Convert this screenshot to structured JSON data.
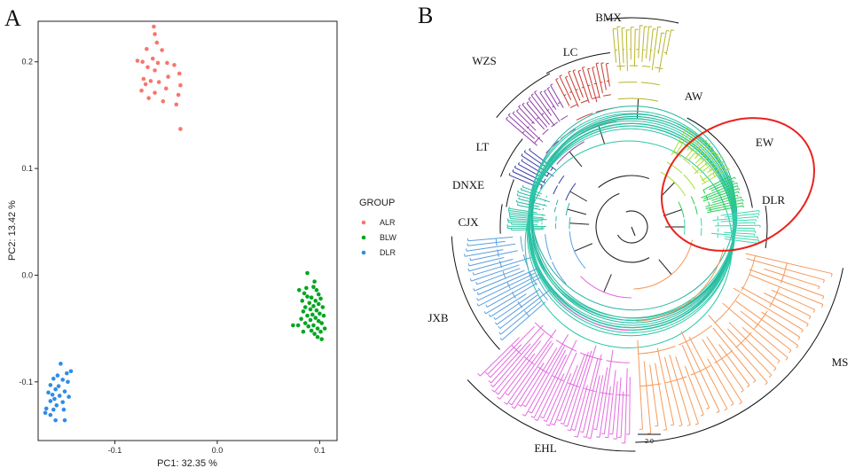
{
  "panels": {
    "a": "A",
    "b": "B"
  },
  "chart_data": [
    {
      "type": "scatter",
      "title": "",
      "xlabel": "PC1: 32.35 %",
      "ylabel": "PC2: 13.42 %",
      "xlim": [
        -0.175,
        0.117
      ],
      "ylim": [
        -0.155,
        0.238
      ],
      "xticks": [
        -0.1,
        0.0,
        0.1
      ],
      "yticks": [
        -0.1,
        0.0,
        0.1,
        0.2
      ],
      "xtick_labels": [
        "-0.1",
        "0.0",
        "0.1"
      ],
      "ytick_labels": [
        "-0.1",
        "0.0",
        "0.1",
        "0.2"
      ],
      "grid": false,
      "legend": {
        "title": "GROUP",
        "placement": "right"
      },
      "series": [
        {
          "name": "ALR",
          "color": "#F8766D",
          "points": [
            [
              -0.062,
              0.233
            ],
            [
              -0.061,
              0.226
            ],
            [
              -0.059,
              0.218
            ],
            [
              -0.069,
              0.212
            ],
            [
              -0.054,
              0.211
            ],
            [
              -0.063,
              0.203
            ],
            [
              -0.073,
              0.2
            ],
            [
              -0.078,
              0.201
            ],
            [
              -0.058,
              0.199
            ],
            [
              -0.049,
              0.199
            ],
            [
              -0.042,
              0.197
            ],
            [
              -0.068,
              0.195
            ],
            [
              -0.061,
              0.192
            ],
            [
              -0.037,
              0.189
            ],
            [
              -0.048,
              0.186
            ],
            [
              -0.072,
              0.184
            ],
            [
              -0.065,
              0.182
            ],
            [
              -0.057,
              0.181
            ],
            [
              -0.07,
              0.179
            ],
            [
              -0.036,
              0.178
            ],
            [
              -0.05,
              0.175
            ],
            [
              -0.074,
              0.173
            ],
            [
              -0.061,
              0.171
            ],
            [
              -0.038,
              0.169
            ],
            [
              -0.067,
              0.166
            ],
            [
              -0.053,
              0.163
            ],
            [
              -0.04,
              0.16
            ],
            [
              -0.036,
              0.137
            ]
          ]
        },
        {
          "name": "BLW",
          "color": "#00A620",
          "points": [
            [
              0.088,
              0.002
            ],
            [
              0.095,
              -0.006
            ],
            [
              0.087,
              -0.012
            ],
            [
              0.094,
              -0.011
            ],
            [
              0.097,
              -0.014
            ],
            [
              0.08,
              -0.014
            ],
            [
              0.099,
              -0.018
            ],
            [
              0.085,
              -0.017
            ],
            [
              0.088,
              -0.02
            ],
            [
              0.092,
              -0.021
            ],
            [
              0.101,
              -0.022
            ],
            [
              0.096,
              -0.024
            ],
            [
              0.083,
              -0.024
            ],
            [
              0.09,
              -0.026
            ],
            [
              0.099,
              -0.027
            ],
            [
              0.094,
              -0.029
            ],
            [
              0.086,
              -0.03
            ],
            [
              0.103,
              -0.03
            ],
            [
              0.091,
              -0.032
            ],
            [
              0.097,
              -0.033
            ],
            [
              0.084,
              -0.034
            ],
            [
              0.1,
              -0.036
            ],
            [
              0.093,
              -0.037
            ],
            [
              0.088,
              -0.038
            ],
            [
              0.104,
              -0.038
            ],
            [
              0.096,
              -0.04
            ],
            [
              0.082,
              -0.041
            ],
            [
              0.091,
              -0.042
            ],
            [
              0.099,
              -0.043
            ],
            [
              0.086,
              -0.045
            ],
            [
              0.102,
              -0.045
            ],
            [
              0.094,
              -0.047
            ],
            [
              0.079,
              -0.047
            ],
            [
              0.089,
              -0.048
            ],
            [
              0.098,
              -0.05
            ],
            [
              0.105,
              -0.05
            ],
            [
              0.092,
              -0.052
            ],
            [
              0.084,
              -0.053
            ],
            [
              0.101,
              -0.053
            ],
            [
              0.095,
              -0.055
            ],
            [
              0.098,
              -0.058
            ],
            [
              0.102,
              -0.06
            ],
            [
              0.074,
              -0.047
            ]
          ]
        },
        {
          "name": "DLR",
          "color": "#2F8CE6",
          "points": [
            [
              -0.153,
              -0.083
            ],
            [
              -0.143,
              -0.09
            ],
            [
              -0.147,
              -0.092
            ],
            [
              -0.156,
              -0.094
            ],
            [
              -0.16,
              -0.097
            ],
            [
              -0.151,
              -0.098
            ],
            [
              -0.146,
              -0.1
            ],
            [
              -0.163,
              -0.103
            ],
            [
              -0.155,
              -0.104
            ],
            [
              -0.158,
              -0.107
            ],
            [
              -0.149,
              -0.109
            ],
            [
              -0.165,
              -0.11
            ],
            [
              -0.161,
              -0.112
            ],
            [
              -0.154,
              -0.113
            ],
            [
              -0.145,
              -0.114
            ],
            [
              -0.159,
              -0.116
            ],
            [
              -0.163,
              -0.118
            ],
            [
              -0.151,
              -0.119
            ],
            [
              -0.157,
              -0.122
            ],
            [
              -0.167,
              -0.125
            ],
            [
              -0.16,
              -0.126
            ],
            [
              -0.15,
              -0.126
            ],
            [
              -0.168,
              -0.129
            ],
            [
              -0.163,
              -0.131
            ],
            [
              -0.158,
              -0.136
            ],
            [
              -0.149,
              -0.136
            ]
          ]
        }
      ]
    },
    {
      "type": "tree",
      "title": "",
      "highlighted_clades": [
        "EW",
        "DLR"
      ],
      "highlight_color": "#E8231E",
      "scale_bar": "2.0",
      "clades": [
        {
          "label": "BMX",
          "color": "#B7B52A",
          "leaves": 14
        },
        {
          "label": "LC",
          "color": "#C73A30",
          "leaves": 12
        },
        {
          "label": "WZS",
          "color": "#8E3FA8",
          "leaves": 14
        },
        {
          "label": "LT",
          "color": "#3A3AA8",
          "leaves": 8
        },
        {
          "label": "DNXE",
          "color": "#27B5A0",
          "leaves": 7
        },
        {
          "label": "CJX",
          "color": "#2BC6A6",
          "leaves": 12
        },
        {
          "label": "JXB",
          "color": "#5B9FE0",
          "leaves": 22
        },
        {
          "label": "EHL",
          "color": "#E36BE0",
          "leaves": 40
        },
        {
          "label": "MS",
          "color": "#F59A5B",
          "leaves": 34
        },
        {
          "label": "DLR",
          "color": "#3DD9B0",
          "leaves": 12
        },
        {
          "label": "EW",
          "color": "#27CE55",
          "leaves": 12
        },
        {
          "label": "AW",
          "color": "#A9E032",
          "leaves": 14
        }
      ]
    }
  ]
}
